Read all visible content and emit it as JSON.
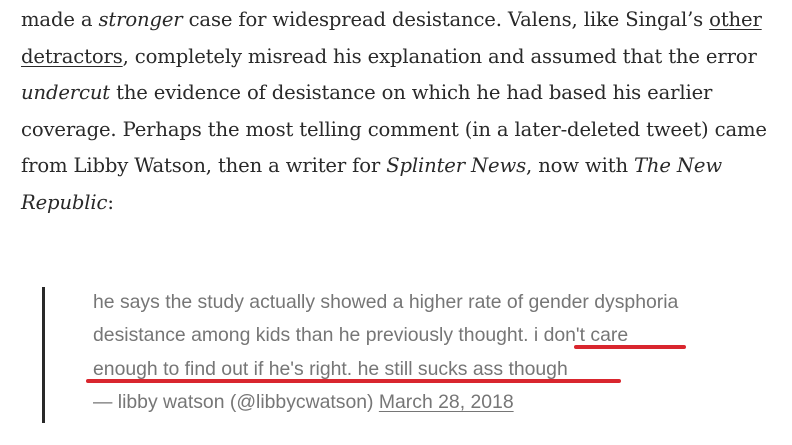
{
  "paragraph": {
    "l1a": "made a ",
    "l1b": "stronger",
    "l1c": " case for widespread desistance. Valens, like Singal’s ",
    "l1d": "other",
    "l2a": "detractors",
    "l2b": ", completely misread his explanation and assumed that the error",
    "l3a": "undercut",
    "l3b": " the evidence of desistance on which he had based his earlier",
    "l4": "coverage. Perhaps the most telling comment (in a later-deleted tweet) came",
    "l5a": "from Libby Watson, then a writer for ",
    "l5b": "Splinter News",
    "l5c": ", now with ",
    "l5d": "The New",
    "l6a": "Republic",
    "l6b": ":"
  },
  "tweet": {
    "line1": "he says the study actually showed a higher rate of gender dysphoria",
    "line2": "desistance among kids than he previously thought.",
    "line2b": " i don't care",
    "line3": "enough to find out if he's right. he still sucks ass though",
    "attribution": "— libby watson (@libbycwatson) ",
    "date_link": "March 28, 2018"
  },
  "colors": {
    "body_text": "#292929",
    "quote_text": "#767676",
    "annotation_red": "#d9262e"
  }
}
